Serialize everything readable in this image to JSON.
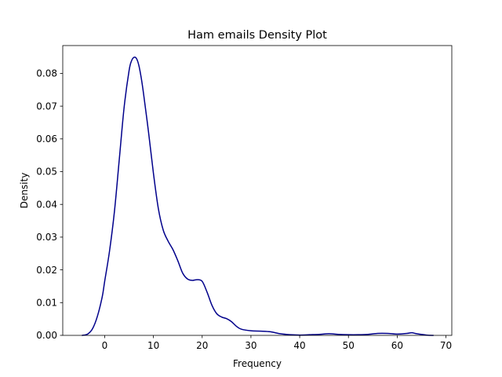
{
  "chart_data": {
    "type": "line",
    "title": "Ham emails Density Plot",
    "xlabel": "Frequency",
    "ylabel": "Density",
    "xlim": [
      -8.6,
      71.2
    ],
    "ylim": [
      0,
      0.0885
    ],
    "x_ticks": [
      0,
      10,
      20,
      30,
      40,
      50,
      60,
      70
    ],
    "x_tick_labels": [
      "0",
      "10",
      "20",
      "30",
      "40",
      "50",
      "60",
      "70"
    ],
    "y_ticks": [
      0,
      0.01,
      0.02,
      0.03,
      0.04,
      0.05,
      0.06,
      0.07,
      0.08
    ],
    "y_tick_labels": [
      "0.00",
      "0.01",
      "0.02",
      "0.03",
      "0.04",
      "0.05",
      "0.06",
      "0.07",
      "0.08"
    ],
    "grid": false,
    "legend": "none",
    "series": [
      {
        "color": "#00008b",
        "x": [
          -4.6,
          -3.5,
          -2.5,
          -1.5,
          -0.5,
          0,
          1,
          2,
          3,
          4,
          5,
          5.5,
          6,
          6.5,
          7,
          7.5,
          8,
          9,
          10,
          11,
          12,
          13,
          14,
          15,
          16,
          17,
          18,
          19,
          20,
          21,
          22,
          23,
          24,
          25,
          26,
          27,
          28,
          30,
          32,
          34,
          36,
          38,
          40,
          42,
          44,
          46,
          48,
          50,
          52,
          54,
          56,
          58,
          60,
          62,
          63,
          64,
          66,
          67.4
        ],
        "y": [
          0,
          0.0004,
          0.002,
          0.0058,
          0.0118,
          0.0165,
          0.0258,
          0.0378,
          0.0538,
          0.0698,
          0.0808,
          0.0838,
          0.0849,
          0.0846,
          0.0825,
          0.0786,
          0.0735,
          0.062,
          0.0495,
          0.0388,
          0.0322,
          0.0288,
          0.0262,
          0.0228,
          0.019,
          0.0172,
          0.0168,
          0.017,
          0.0165,
          0.0132,
          0.0092,
          0.0066,
          0.0056,
          0.0051,
          0.0042,
          0.0028,
          0.0019,
          0.0014,
          0.0013,
          0.0011,
          0.0005,
          0.0002,
          0.0001,
          0.0002,
          0.0003,
          0.0005,
          0.0003,
          0.0002,
          0.0002,
          0.0003,
          0.0006,
          0.0006,
          0.0004,
          0.0006,
          0.0008,
          0.0005,
          0.0001,
          0
        ]
      }
    ]
  }
}
